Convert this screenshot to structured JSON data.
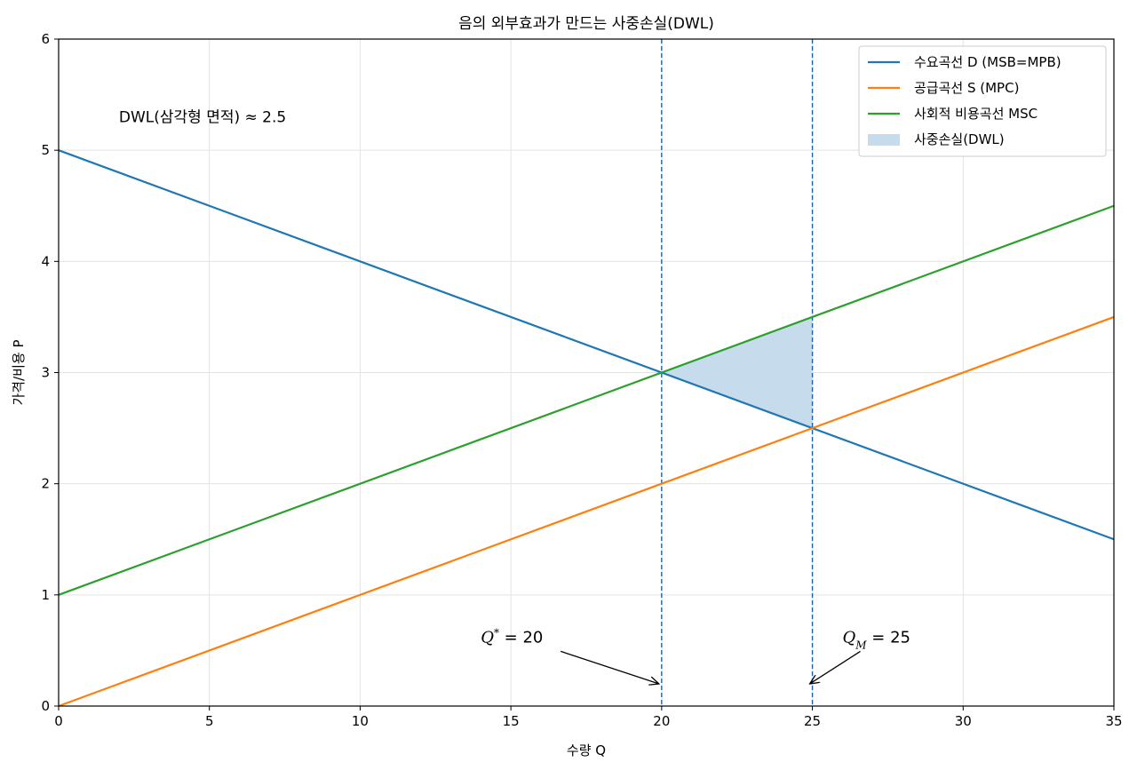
{
  "chart_data": {
    "type": "line",
    "title": "음의 외부효과가 만드는 사중손실(DWL)",
    "xlabel": "수량 Q",
    "ylabel": "가격/비용 P",
    "xlim": [
      0,
      35
    ],
    "ylim": [
      0,
      6
    ],
    "xticks": [
      0,
      5,
      10,
      15,
      20,
      25,
      30,
      35
    ],
    "yticks": [
      0,
      1,
      2,
      3,
      4,
      5,
      6
    ],
    "grid": true,
    "legend_position": "top-right",
    "series": [
      {
        "name": "수요곡선 D (MSB=MPB)",
        "color": "#1f77b4",
        "x": [
          0,
          35
        ],
        "y": [
          5,
          1.5
        ]
      },
      {
        "name": "공급곡선 S (MPC)",
        "color": "#ff7f0e",
        "x": [
          0,
          35
        ],
        "y": [
          0,
          3.5
        ]
      },
      {
        "name": "사회적 비용곡선 MSC",
        "color": "#2ca02c",
        "x": [
          0,
          35
        ],
        "y": [
          1,
          4.5
        ]
      }
    ],
    "shaded_region": {
      "name": "사중손실(DWL)",
      "color": "#c6dbec",
      "vertices": [
        [
          20,
          3
        ],
        [
          25,
          3.5
        ],
        [
          25,
          2.5
        ]
      ]
    },
    "vertical_lines": [
      {
        "x": 20,
        "color": "#1f5fa8",
        "style": "dashed"
      },
      {
        "x": 25,
        "color": "#1f5fa8",
        "style": "dashed"
      }
    ],
    "annotations": [
      {
        "id": "qstar",
        "label_var": "Q",
        "label_sup": "*",
        "label_rest": " = 20",
        "text_xy": [
          14,
          0.62
        ],
        "arrow_to": [
          20,
          0.2
        ]
      },
      {
        "id": "qm",
        "label_var": "Q",
        "label_sub": "M",
        "label_rest": " = 25",
        "text_xy": [
          26,
          0.62
        ],
        "arrow_to": [
          25,
          0.2
        ]
      }
    ],
    "text_note": "DWL(삼각형 면적) ≈ 2.5"
  }
}
